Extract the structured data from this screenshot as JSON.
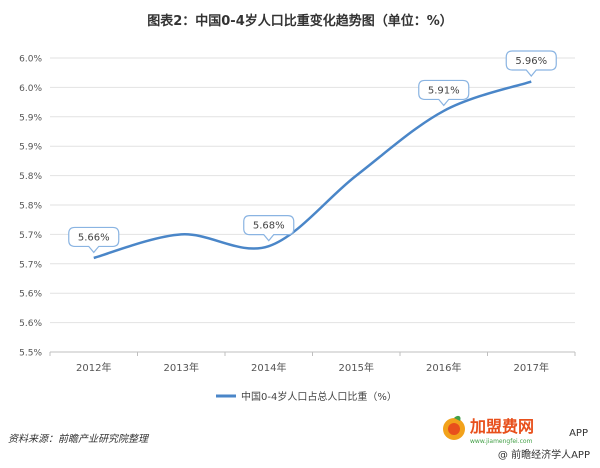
{
  "title": "图表2：中国0-4岁人口比重变化趋势图（单位：%）",
  "source": "资料来源：前瞻产业研究院整理",
  "brand": {
    "app_line_top": "APP",
    "app_line": "@ 前瞻经济学人APP",
    "logo_text": "加盟费网",
    "logo_sub": "www.jiamengfei.com",
    "logo_colors": [
      "#e8501c",
      "#f2a21b",
      "#43a047"
    ]
  },
  "colors": {
    "line": "#4a86c8",
    "grid": "#e2e2e2",
    "axis": "#bfbfbf",
    "callout": "#8ab4e2",
    "text": "#555555"
  },
  "chart_data": {
    "type": "line",
    "title": "图表2：中国0-4岁人口比重变化趋势图（单位：%）",
    "categories": [
      "2012年",
      "2013年",
      "2014年",
      "2015年",
      "2016年",
      "2017年"
    ],
    "series": [
      {
        "name": "中国0-4岁人口占总人口比重（%）",
        "values": [
          5.66,
          5.7,
          5.68,
          5.8,
          5.91,
          5.96
        ]
      }
    ],
    "data_labels": [
      {
        "index": 0,
        "text": "5.66%"
      },
      {
        "index": 2,
        "text": "5.68%"
      },
      {
        "index": 4,
        "text": "5.91%"
      },
      {
        "index": 5,
        "text": "5.96%"
      }
    ],
    "ylim": [
      5.5,
      6.0
    ],
    "yticks": [
      "5.5%",
      "5.6%",
      "5.6%",
      "5.7%",
      "5.7%",
      "5.8%",
      "5.8%",
      "5.9%",
      "5.9%",
      "6.0%",
      "6.0%"
    ],
    "grid": true,
    "legend": "bottom-center"
  }
}
